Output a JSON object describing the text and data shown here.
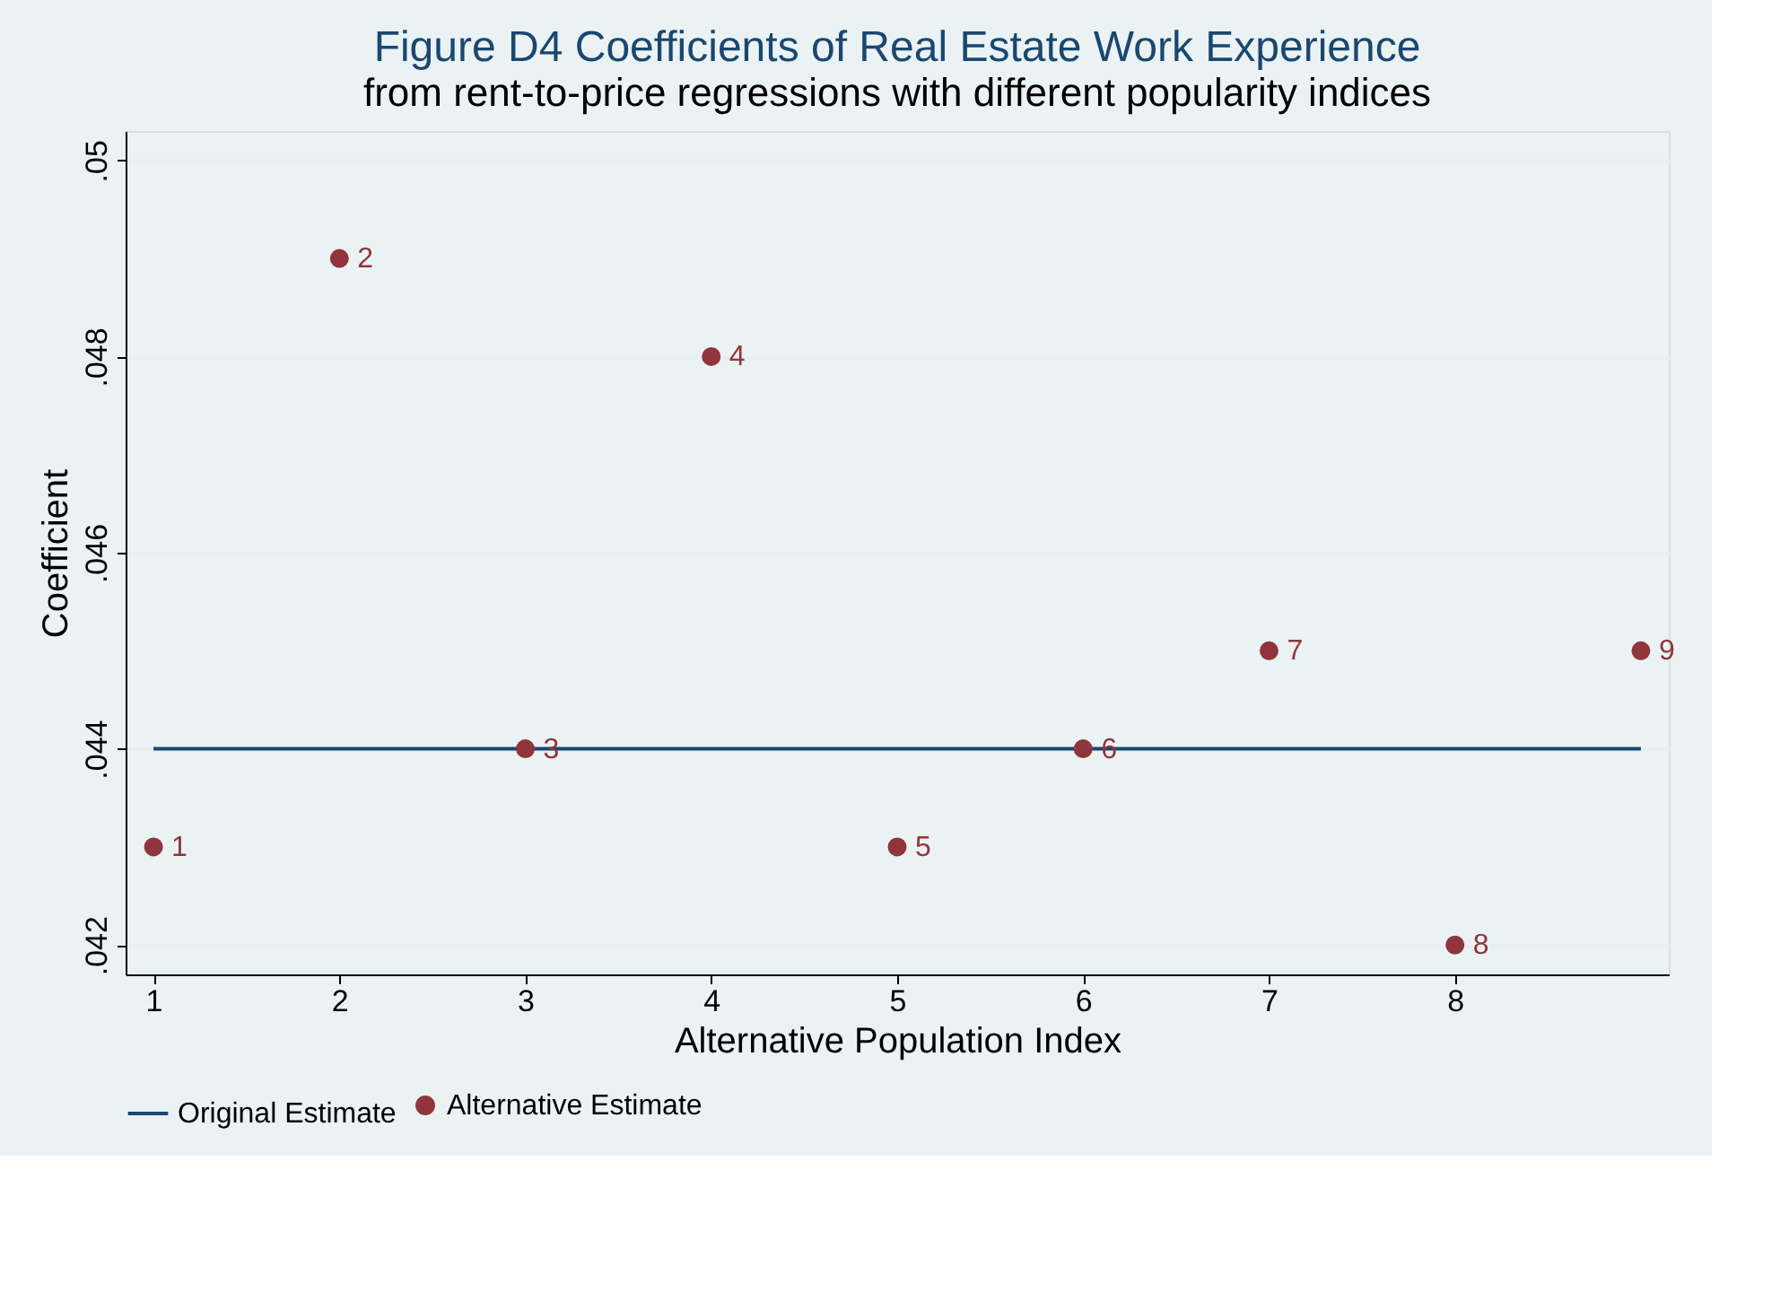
{
  "chart_data": {
    "type": "scatter",
    "title": "Figure D4 Coefficients of Real Estate Work Experience",
    "subtitle": "from rent-to-price regressions with different popularity indices",
    "xlabel": "Alternative Population Index",
    "ylabel": "Coefficient",
    "series": [
      {
        "name": "Original Estimate",
        "type": "line",
        "line_style": "solid",
        "marker": "none",
        "color": "#1a476f",
        "x": [
          1,
          9
        ],
        "values": [
          0.044,
          0.044
        ]
      },
      {
        "name": "Alternative Estimate",
        "marker": "circle",
        "color": "#90353b",
        "x": [
          1,
          2,
          3,
          4,
          5,
          6,
          7,
          8,
          9
        ],
        "values": [
          0.043,
          0.049,
          0.044,
          0.048,
          0.043,
          0.044,
          0.045,
          0.042,
          0.045
        ]
      }
    ],
    "annotations": [
      {
        "text": "1",
        "x": 1,
        "y": 0.043
      },
      {
        "text": "2",
        "x": 2,
        "y": 0.049
      },
      {
        "text": "3",
        "x": 3,
        "y": 0.044
      },
      {
        "text": "4",
        "x": 4,
        "y": 0.048
      },
      {
        "text": "5",
        "x": 5,
        "y": 0.043
      },
      {
        "text": "6",
        "x": 6,
        "y": 0.044
      },
      {
        "text": "7",
        "x": 7,
        "y": 0.045
      },
      {
        "text": "8",
        "x": 8,
        "y": 0.042
      },
      {
        "text": "9",
        "x": 9,
        "y": 0.045
      }
    ],
    "xlim": [
      0.85,
      9.15
    ],
    "xticks": [
      1,
      2,
      3,
      4,
      5,
      6,
      7,
      8
    ],
    "ylim": [
      0.0417,
      0.0503
    ],
    "yticks": [
      {
        "value": 0.042,
        "label": ".042"
      },
      {
        "value": 0.044,
        "label": ".044"
      },
      {
        "value": 0.046,
        "label": ".046"
      },
      {
        "value": 0.048,
        "label": ".048"
      },
      {
        "value": 0.05,
        "label": ".05"
      }
    ],
    "grid": "y",
    "legend": "bottom"
  }
}
